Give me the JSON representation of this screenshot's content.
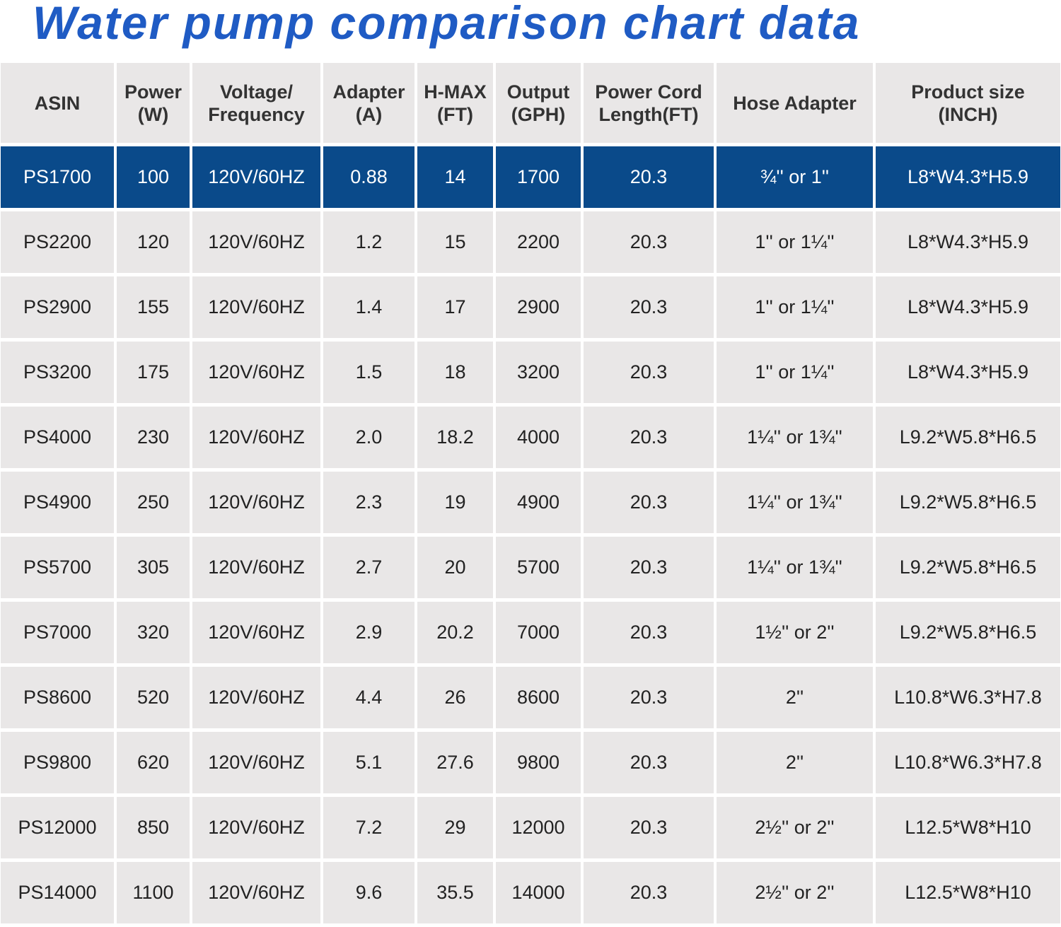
{
  "title": "Water pump comparison chart data",
  "table": {
    "header": [
      "ASIN",
      "Power\n(W)",
      "Voltage/\nFrequency",
      "Adapter\n(A)",
      "H-MAX\n(FT)",
      "Output\n(GPH)",
      "Power Cord\nLength(FT)",
      "Hose Adapter",
      "Product size\n(INCH)"
    ],
    "rows": [
      [
        "PS1700",
        "100",
        "120V/60HZ",
        "0.88",
        "14",
        "1700",
        "20.3",
        "¾'' or 1''",
        "L8*W4.3*H5.9"
      ],
      [
        "PS2200",
        "120",
        "120V/60HZ",
        "1.2",
        "15",
        "2200",
        "20.3",
        "1'' or 1¼''",
        "L8*W4.3*H5.9"
      ],
      [
        "PS2900",
        "155",
        "120V/60HZ",
        "1.4",
        "17",
        "2900",
        "20.3",
        "1'' or 1¼''",
        "L8*W4.3*H5.9"
      ],
      [
        "PS3200",
        "175",
        "120V/60HZ",
        "1.5",
        "18",
        "3200",
        "20.3",
        "1'' or 1¼''",
        "L8*W4.3*H5.9"
      ],
      [
        "PS4000",
        "230",
        "120V/60HZ",
        "2.0",
        "18.2",
        "4000",
        "20.3",
        "1¼'' or 1¾''",
        "L9.2*W5.8*H6.5"
      ],
      [
        "PS4900",
        "250",
        "120V/60HZ",
        "2.3",
        "19",
        "4900",
        "20.3",
        "1¼'' or 1¾''",
        "L9.2*W5.8*H6.5"
      ],
      [
        "PS5700",
        "305",
        "120V/60HZ",
        "2.7",
        "20",
        "5700",
        "20.3",
        "1¼'' or 1¾''",
        "L9.2*W5.8*H6.5"
      ],
      [
        "PS7000",
        "320",
        "120V/60HZ",
        "2.9",
        "20.2",
        "7000",
        "20.3",
        "1½'' or 2''",
        "L9.2*W5.8*H6.5"
      ],
      [
        "PS8600",
        "520",
        "120V/60HZ",
        "4.4",
        "26",
        "8600",
        "20.3",
        "2''",
        "L10.8*W6.3*H7.8"
      ],
      [
        "PS9800",
        "620",
        "120V/60HZ",
        "5.1",
        "27.6",
        "9800",
        "20.3",
        "2''",
        "L10.8*W6.3*H7.8"
      ],
      [
        "PS12000",
        "850",
        "120V/60HZ",
        "7.2",
        "29",
        "12000",
        "20.3",
        "2½'' or 2''",
        "L12.5*W8*H10"
      ],
      [
        "PS14000",
        "1100",
        "120V/60HZ",
        "9.6",
        "35.5",
        "14000",
        "20.3",
        "2½'' or 2''",
        "L12.5*W8*H10"
      ]
    ]
  }
}
